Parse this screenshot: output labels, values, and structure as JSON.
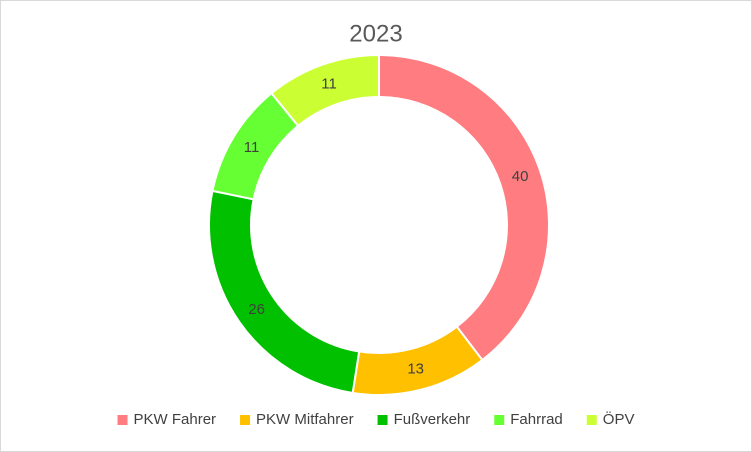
{
  "chart_data": {
    "type": "donut",
    "title": "2023",
    "categories": [
      "PKW Fahrer",
      "PKW Mitfahrer",
      "Fußverkehr",
      "Fahrrad",
      "ÖPV"
    ],
    "values": [
      40,
      13,
      26,
      11,
      11
    ],
    "colors": [
      "#ff7c80",
      "#ffc000",
      "#00c000",
      "#66ff33",
      "#ccff33"
    ],
    "legend": "bottom"
  }
}
